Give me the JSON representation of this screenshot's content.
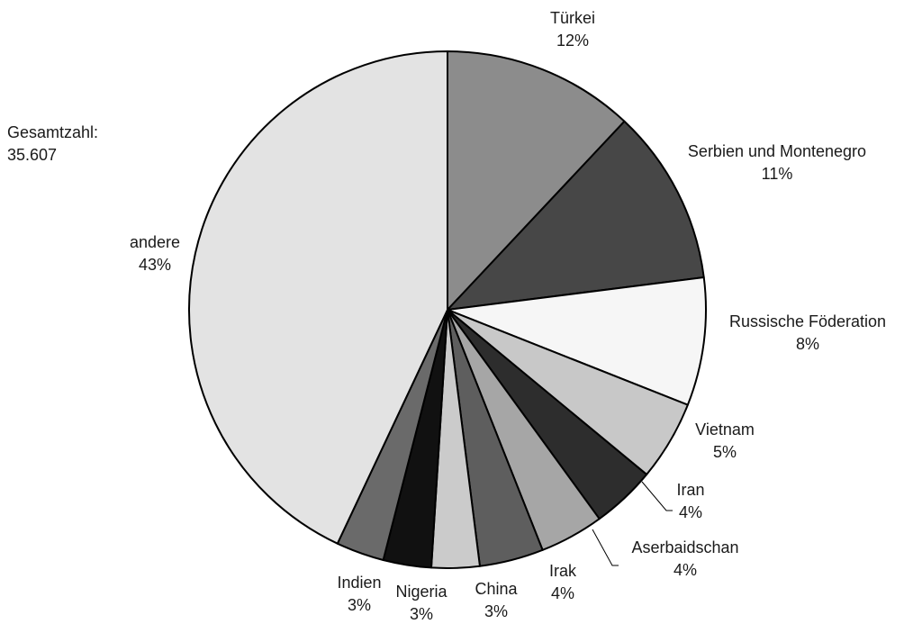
{
  "chart_data": {
    "type": "pie",
    "title": "",
    "annotation": {
      "label": "Gesamtzahl:",
      "value": "35.607"
    },
    "slices": [
      {
        "name": "Türkei",
        "value": 12,
        "value_label": "12%",
        "color": "#8c8c8c"
      },
      {
        "name": "Serbien und Montenegro",
        "value": 11,
        "value_label": "11%",
        "color": "#474747"
      },
      {
        "name": "Russische Föderation",
        "value": 8,
        "value_label": "8%",
        "color": "#f6f6f6"
      },
      {
        "name": "Vietnam",
        "value": 5,
        "value_label": "5%",
        "color": "#c8c8c8"
      },
      {
        "name": "Iran",
        "value": 4,
        "value_label": "4%",
        "color": "#2d2d2d"
      },
      {
        "name": "Aserbaidschan",
        "value": 4,
        "value_label": "4%",
        "color": "#a6a6a6"
      },
      {
        "name": "Irak",
        "value": 4,
        "value_label": "4%",
        "color": "#5e5e5e"
      },
      {
        "name": "China",
        "value": 3,
        "value_label": "3%",
        "color": "#cbcbcb"
      },
      {
        "name": "Nigeria",
        "value": 3,
        "value_label": "3%",
        "color": "#111111"
      },
      {
        "name": "Indien",
        "value": 3,
        "value_label": "3%",
        "color": "#6a6a6a"
      },
      {
        "name": "andere",
        "value": 43,
        "value_label": "43%",
        "color": "#e3e3e3"
      }
    ]
  }
}
